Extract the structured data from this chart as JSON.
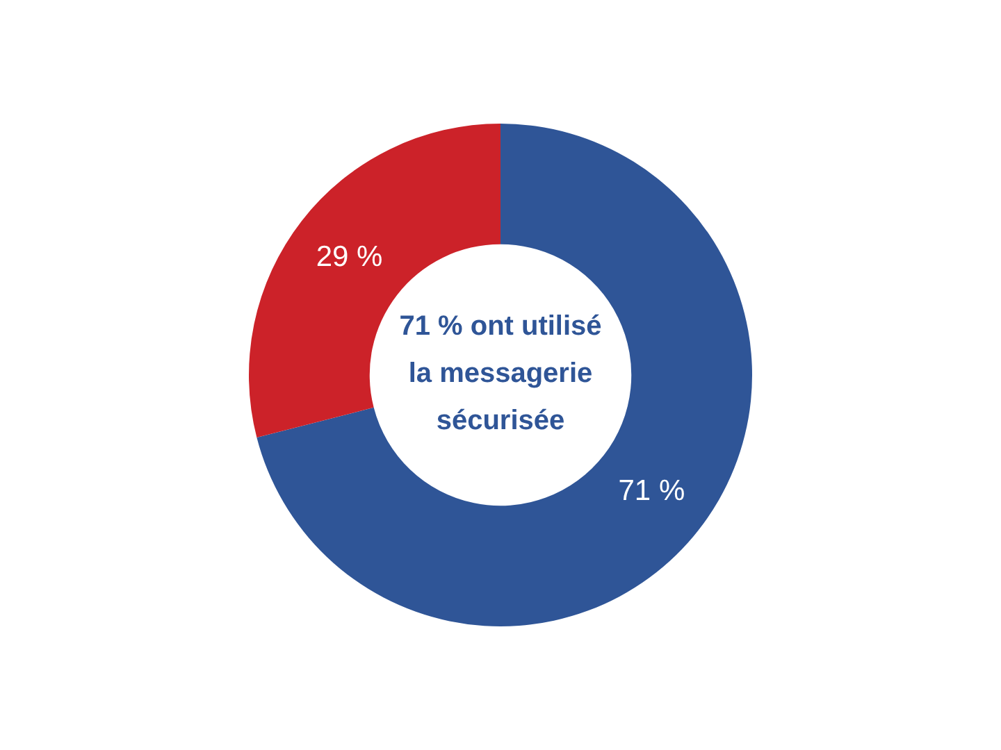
{
  "chart_data": {
    "type": "donut",
    "categories": [
      null,
      null
    ],
    "values": [
      71,
      29
    ],
    "colors": [
      "#2f5597",
      "#cc2229"
    ],
    "value_labels": [
      "71 %",
      "29 %"
    ],
    "legend": false,
    "annotations": [
      "71 % ont utilisé la messagerie sécurisée"
    ]
  }
}
